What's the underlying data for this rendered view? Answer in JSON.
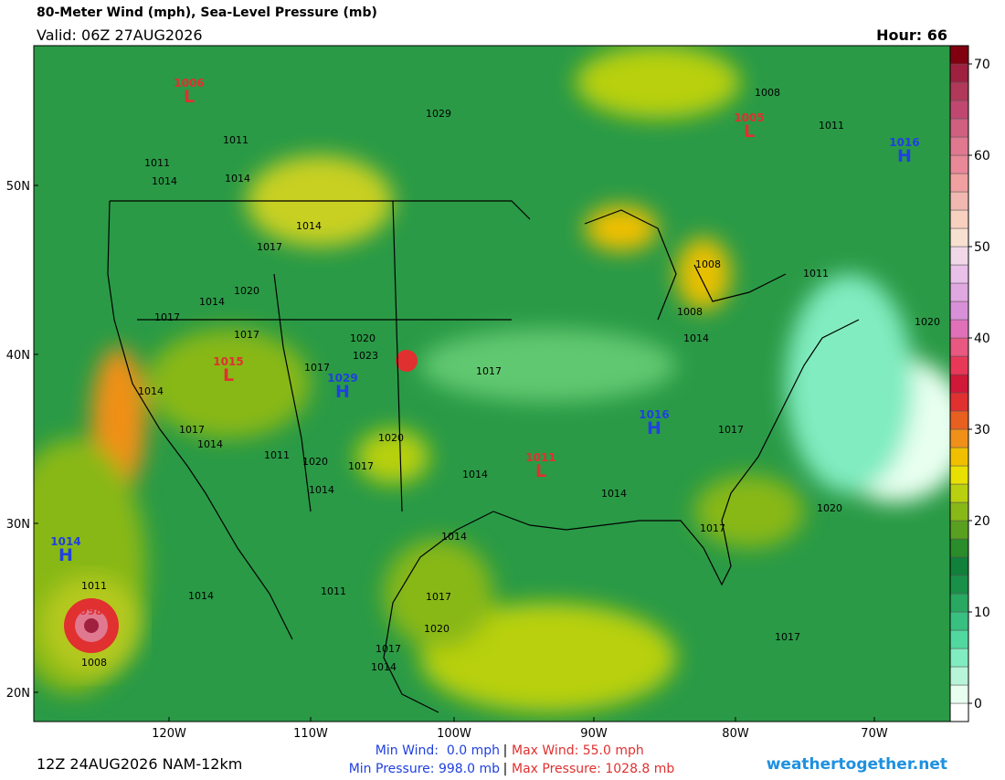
{
  "header": {
    "title": "80-Meter Wind (mph), Sea-Level Pressure (mb)",
    "valid": "Valid: 06Z 27AUG2026",
    "hour": "Hour: 66"
  },
  "map": {
    "lat_labels": [
      "50N",
      "40N",
      "30N",
      "20N"
    ],
    "lon_labels": [
      "120W",
      "110W",
      "100W",
      "90W",
      "80W",
      "70W"
    ],
    "pressure_centers": [
      {
        "label": "L",
        "value": "1006"
      },
      {
        "label": "L",
        "value": "1005"
      },
      {
        "label": "H",
        "value": "1016"
      },
      {
        "label": "L",
        "value": "1015"
      },
      {
        "label": "H",
        "value": "1029"
      },
      {
        "label": "H",
        "value": "1016"
      },
      {
        "label": "L",
        "value": "1011"
      },
      {
        "label": "H",
        "value": "1014"
      },
      {
        "value": "998"
      }
    ],
    "isobar_labels": [
      "1029",
      "1011",
      "1011",
      "1014",
      "1014",
      "1008",
      "1011",
      "1014",
      "1017",
      "1020",
      "1014",
      "1017",
      "1017",
      "1020",
      "1023",
      "1017",
      "1017",
      "1014",
      "1017",
      "1014",
      "1011",
      "1020",
      "1017",
      "1020",
      "1014",
      "1014",
      "1014",
      "1017",
      "1008",
      "1011",
      "1008",
      "1014",
      "1020",
      "1020",
      "1017",
      "1014",
      "1014",
      "1011",
      "1008",
      "1011",
      "1017",
      "1020",
      "1017",
      "1014",
      "1017"
    ]
  },
  "colorbar": {
    "levels": [
      -2,
      0,
      2,
      4,
      6,
      8,
      10,
      12,
      14,
      16,
      18,
      20,
      22,
      24,
      26,
      28,
      30,
      32,
      34,
      36,
      38,
      40,
      42,
      44,
      46,
      48,
      50,
      52,
      54,
      56,
      58,
      60,
      62,
      64,
      66,
      68,
      70,
      72
    ],
    "colors": [
      "#ffffff",
      "#e8fff0",
      "#b8f5d8",
      "#80ecc0",
      "#50d8a0",
      "#38c080",
      "#28a860",
      "#189048",
      "#10803a",
      "#2a8c2a",
      "#5aa020",
      "#88b818",
      "#b8d010",
      "#e8e000",
      "#f0c000",
      "#f09018",
      "#e86020",
      "#e03030",
      "#d01838",
      "#e83858",
      "#e85880",
      "#e070b8",
      "#d890d8",
      "#e0a8e0",
      "#e8c0e8",
      "#f0d8e8",
      "#f8e0d0",
      "#f8d0c0",
      "#f0b8b0",
      "#f0a0a0",
      "#e88898",
      "#e07890",
      "#d06080",
      "#c04870",
      "#b03858",
      "#a02040",
      "#800010"
    ],
    "ticks": [
      0,
      10,
      20,
      30,
      40,
      50,
      60,
      70
    ]
  },
  "footer": {
    "run": "12Z 24AUG2026 NAM-12km",
    "min_wind": "Min Wind:  0.0 mph",
    "max_wind": "Max Wind: 55.0 mph",
    "min_pressure": "Min Pressure: 998.0 mb",
    "max_pressure": "Max Pressure: 1028.8 mb",
    "separator": "|",
    "site": "weathertogether.net"
  }
}
